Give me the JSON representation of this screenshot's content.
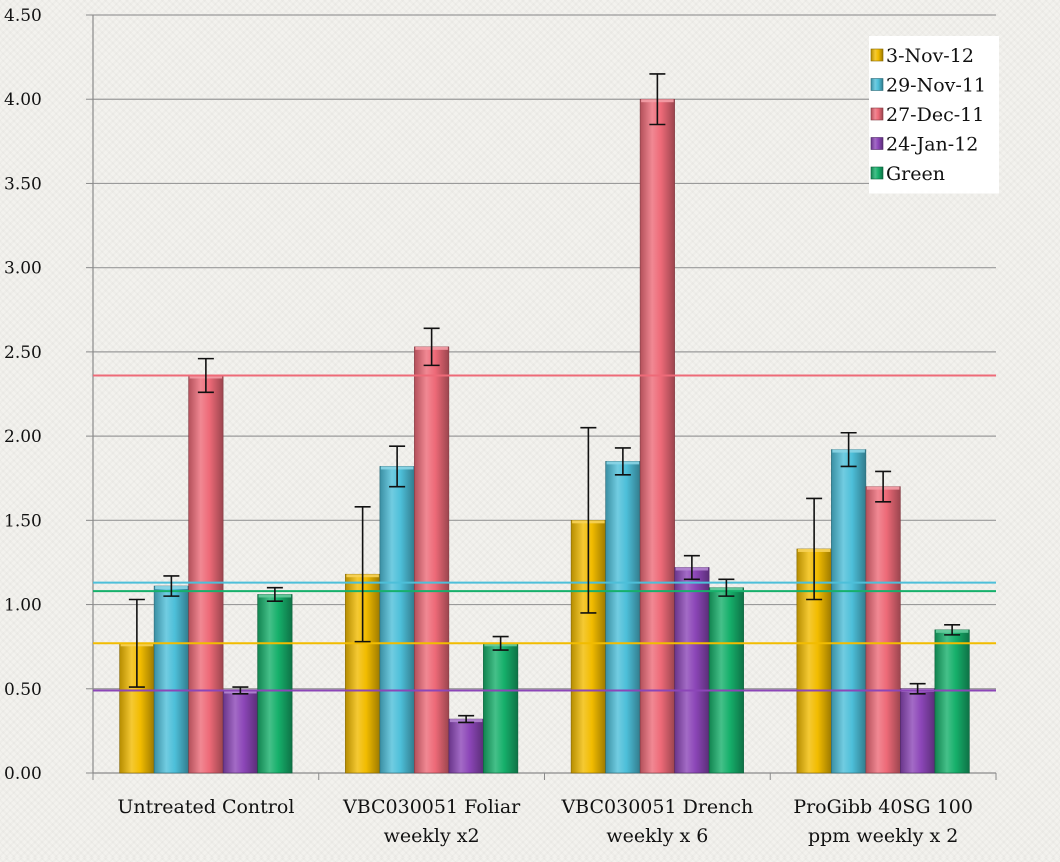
{
  "chart_data": {
    "type": "bar",
    "title": "",
    "xlabel": "",
    "ylabel": "",
    "ylim": [
      0,
      4.5
    ],
    "yticks": [
      "0.00",
      "0.50",
      "1.00",
      "1.50",
      "2.00",
      "2.50",
      "3.00",
      "3.50",
      "4.00",
      "4.50"
    ],
    "grid": true,
    "legend_position": "top-right",
    "categories": [
      [
        "Untreated Control"
      ],
      [
        "VBC030051 Foliar",
        "weekly x2"
      ],
      [
        "VBC030051 Drench",
        "weekly x 6"
      ],
      [
        "ProGibb 40SG 100",
        "ppm weekly x 2"
      ]
    ],
    "series": [
      {
        "name": "3-Nov-12",
        "color": "#f2bc00",
        "values": [
          0.77,
          1.18,
          1.5,
          1.33
        ],
        "error": [
          0.26,
          0.4,
          0.55,
          0.3
        ]
      },
      {
        "name": "29-Nov-11",
        "color": "#4dbfd9",
        "values": [
          1.11,
          1.82,
          1.85,
          1.92
        ],
        "error": [
          0.06,
          0.12,
          0.08,
          0.1
        ]
      },
      {
        "name": "27-Dec-11",
        "color": "#ee6a78",
        "values": [
          2.36,
          2.53,
          4.0,
          1.7
        ],
        "error": [
          0.1,
          0.11,
          0.15,
          0.09
        ]
      },
      {
        "name": "24-Jan-12",
        "color": "#8c46b8",
        "values": [
          0.49,
          0.32,
          1.22,
          0.5
        ],
        "error": [
          0.02,
          0.02,
          0.07,
          0.03
        ]
      },
      {
        "name": "Green",
        "color": "#16b06b",
        "values": [
          1.06,
          0.77,
          1.1,
          0.85
        ],
        "error": [
          0.04,
          0.04,
          0.05,
          0.03
        ]
      }
    ],
    "reference_lines": [
      {
        "value": 2.36,
        "color": "#ee6a78"
      },
      {
        "value": 1.13,
        "color": "#4dbfd9"
      },
      {
        "value": 1.08,
        "color": "#16b06b"
      },
      {
        "value": 0.77,
        "color": "#f2bc00"
      },
      {
        "value": 0.49,
        "color": "#8c46b8"
      }
    ]
  }
}
